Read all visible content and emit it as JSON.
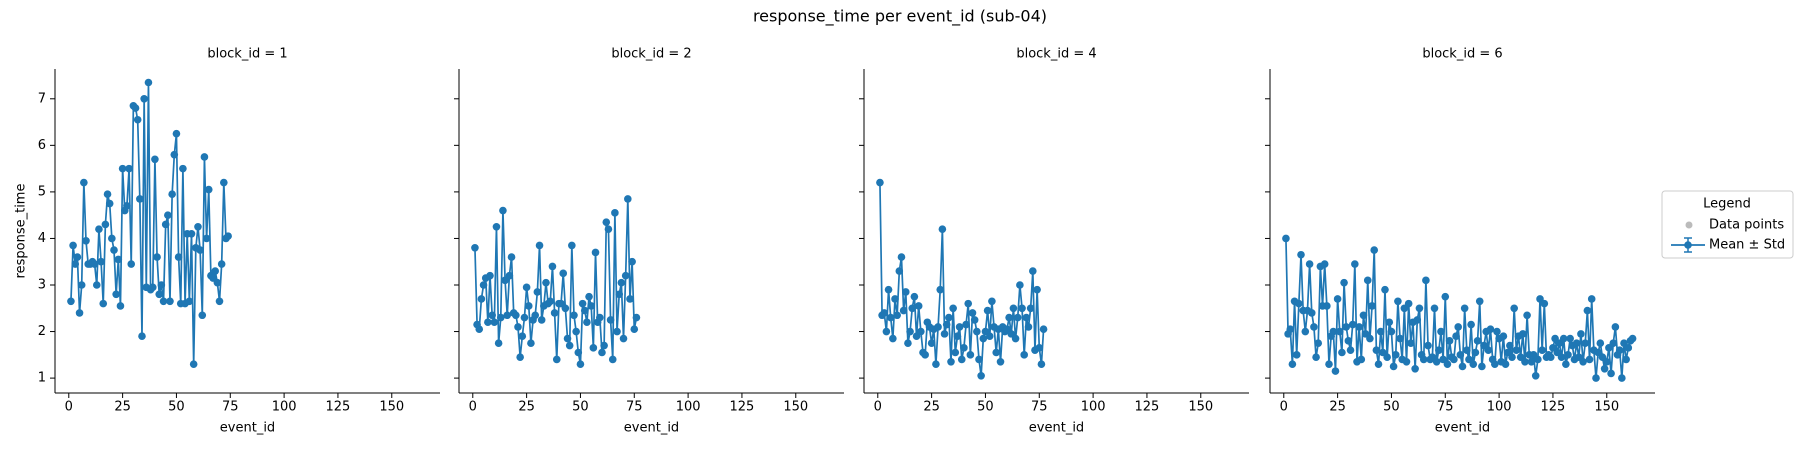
{
  "title": "response_time per event_id (sub-04)",
  "legend": {
    "title": "Legend",
    "position": "right",
    "entries": [
      {
        "name": "Data points",
        "color": "#bbbbbb"
      }
    ]
  },
  "chart_data": [
    {
      "type": "line",
      "title": "block_id = 1",
      "xlabel": "event_id",
      "ylabel": "response_time",
      "x": [
        1,
        2,
        3,
        4,
        5,
        6,
        7,
        8,
        9,
        10,
        11,
        12,
        13,
        14,
        15,
        16,
        17,
        18,
        19,
        20,
        21,
        22,
        23,
        24,
        25,
        26,
        27,
        28,
        29,
        30,
        31,
        32,
        33,
        34,
        35,
        36,
        37,
        38,
        39,
        40,
        41,
        42,
        43,
        44,
        45,
        46,
        47,
        48,
        49,
        50,
        51,
        52,
        53,
        54,
        55,
        56,
        57,
        58,
        59,
        60,
        61,
        62,
        63,
        64,
        65,
        66,
        67,
        68,
        69,
        70,
        71,
        72,
        73,
        74
      ],
      "series": [
        {
          "name": "Mean ± Std",
          "color": "#1f77b4",
          "values": [
            2.65,
            3.85,
            3.45,
            3.6,
            2.4,
            3.0,
            5.2,
            3.95,
            3.45,
            3.45,
            3.5,
            3.45,
            3.0,
            4.2,
            3.5,
            2.6,
            4.3,
            4.95,
            4.75,
            4.0,
            3.75,
            2.8,
            3.55,
            2.55,
            5.5,
            4.6,
            4.7,
            5.5,
            3.45,
            6.85,
            6.8,
            6.55,
            4.85,
            1.9,
            7.0,
            2.95,
            7.35,
            2.9,
            2.95,
            5.7,
            3.6,
            2.8,
            3.0,
            2.65,
            4.3,
            4.5,
            2.65,
            4.95,
            5.8,
            6.25,
            3.6,
            2.6,
            5.5,
            2.6,
            4.1,
            2.65,
            4.1,
            1.3,
            3.8,
            4.25,
            3.75,
            2.35,
            5.75,
            4.0,
            5.05,
            3.2,
            3.15,
            3.3,
            3.05,
            2.65,
            3.45,
            5.2,
            4.0,
            4.05
          ]
        }
      ],
      "xlim": [
        -6.4,
        172.4
      ],
      "ylim": [
        0.68,
        7.64
      ],
      "xticks": [
        0,
        25,
        50,
        75,
        100,
        125,
        150
      ],
      "yticks": [
        1,
        2,
        3,
        4,
        5,
        6,
        7
      ]
    },
    {
      "type": "line",
      "title": "block_id = 2",
      "xlabel": "event_id",
      "x": [
        1,
        2,
        3,
        4,
        5,
        6,
        7,
        8,
        9,
        10,
        11,
        12,
        13,
        14,
        15,
        16,
        17,
        18,
        19,
        20,
        21,
        22,
        23,
        24,
        25,
        26,
        27,
        28,
        29,
        30,
        31,
        32,
        33,
        34,
        35,
        36,
        37,
        38,
        39,
        40,
        41,
        42,
        43,
        44,
        45,
        46,
        47,
        48,
        49,
        50,
        51,
        52,
        53,
        54,
        55,
        56,
        57,
        58,
        59,
        60,
        61,
        62,
        63,
        64,
        65,
        66,
        67,
        68,
        69,
        70,
        71,
        72,
        73,
        74,
        75,
        76
      ],
      "series": [
        {
          "name": "Mean ± Std",
          "color": "#1f77b4",
          "values": [
            3.8,
            2.15,
            2.05,
            2.7,
            3.0,
            3.15,
            2.2,
            3.2,
            2.35,
            2.2,
            4.25,
            1.75,
            2.3,
            4.6,
            3.1,
            2.35,
            3.2,
            3.6,
            2.4,
            2.35,
            2.1,
            1.45,
            1.9,
            2.3,
            2.95,
            2.55,
            1.75,
            2.25,
            2.35,
            2.85,
            3.85,
            2.25,
            2.55,
            3.05,
            2.6,
            2.65,
            3.4,
            2.4,
            1.4,
            2.6,
            2.6,
            3.25,
            2.5,
            1.85,
            1.7,
            3.85,
            2.35,
            2.0,
            1.55,
            1.3,
            2.6,
            2.45,
            2.2,
            2.75,
            2.55,
            1.65,
            3.7,
            2.2,
            2.3,
            1.55,
            1.7,
            4.35,
            4.2,
            2.25,
            1.4,
            4.55,
            2.0,
            2.8,
            3.05,
            1.85,
            3.2,
            4.85,
            2.7,
            3.5,
            2.05,
            2.3
          ]
        }
      ],
      "xlim": [
        -6.4,
        172.4
      ],
      "ylim": [
        0.68,
        7.64
      ],
      "xticks": [
        0,
        25,
        50,
        75,
        100,
        125,
        150
      ],
      "yticks": [
        1,
        2,
        3,
        4,
        5,
        6,
        7
      ]
    },
    {
      "type": "line",
      "title": "block_id = 4",
      "xlabel": "event_id",
      "x": [
        1,
        2,
        3,
        4,
        5,
        6,
        7,
        8,
        9,
        10,
        11,
        12,
        13,
        14,
        15,
        16,
        17,
        18,
        19,
        20,
        21,
        22,
        23,
        24,
        25,
        26,
        27,
        28,
        29,
        30,
        31,
        32,
        33,
        34,
        35,
        36,
        37,
        38,
        39,
        40,
        41,
        42,
        43,
        44,
        45,
        46,
        47,
        48,
        49,
        50,
        51,
        52,
        53,
        54,
        55,
        56,
        57,
        58,
        59,
        60,
        61,
        62,
        63,
        64,
        65,
        66,
        67,
        68,
        69,
        70,
        71,
        72,
        73,
        74,
        75,
        76,
        77
      ],
      "series": [
        {
          "name": "Mean ± Std",
          "color": "#1f77b4",
          "values": [
            5.2,
            2.35,
            2.4,
            2.0,
            2.9,
            2.3,
            1.85,
            2.7,
            2.35,
            3.3,
            3.6,
            2.45,
            2.85,
            1.75,
            2.0,
            2.5,
            2.75,
            1.9,
            2.55,
            2.0,
            1.55,
            1.5,
            2.2,
            2.1,
            1.75,
            2.05,
            1.3,
            2.1,
            2.9,
            4.2,
            1.95,
            2.15,
            2.3,
            1.35,
            2.5,
            1.55,
            1.9,
            2.1,
            1.4,
            1.65,
            2.15,
            2.6,
            1.5,
            2.4,
            2.25,
            2.0,
            1.4,
            1.05,
            1.85,
            2.0,
            2.45,
            1.9,
            2.65,
            2.1,
            1.55,
            2.05,
            1.35,
            2.1,
            2.0,
            2.05,
            2.3,
            1.95,
            2.5,
            1.85,
            2.3,
            3.0,
            2.5,
            1.5,
            2.3,
            2.1,
            2.5,
            3.3,
            1.6,
            2.9,
            1.65,
            1.3,
            2.05
          ]
        }
      ],
      "xlim": [
        -6.4,
        172.4
      ],
      "ylim": [
        0.68,
        7.64
      ],
      "xticks": [
        0,
        25,
        50,
        75,
        100,
        125,
        150
      ],
      "yticks": [
        1,
        2,
        3,
        4,
        5,
        6,
        7
      ]
    },
    {
      "type": "line",
      "title": "block_id = 6",
      "xlabel": "event_id",
      "x": [
        1,
        2,
        3,
        4,
        5,
        6,
        7,
        8,
        9,
        10,
        11,
        12,
        13,
        14,
        15,
        16,
        17,
        18,
        19,
        20,
        21,
        22,
        23,
        24,
        25,
        26,
        27,
        28,
        29,
        30,
        31,
        32,
        33,
        34,
        35,
        36,
        37,
        38,
        39,
        40,
        41,
        42,
        43,
        44,
        45,
        46,
        47,
        48,
        49,
        50,
        51,
        52,
        53,
        54,
        55,
        56,
        57,
        58,
        59,
        60,
        61,
        62,
        63,
        64,
        65,
        66,
        67,
        68,
        69,
        70,
        71,
        72,
        73,
        74,
        75,
        76,
        77,
        78,
        79,
        80,
        81,
        82,
        83,
        84,
        85,
        86,
        87,
        88,
        89,
        90,
        91,
        92,
        93,
        94,
        95,
        96,
        97,
        98,
        99,
        100,
        101,
        102,
        103,
        104,
        105,
        106,
        107,
        108,
        109,
        110,
        111,
        112,
        113,
        114,
        115,
        116,
        117,
        118,
        119,
        120,
        121,
        122,
        123,
        124,
        125,
        126,
        127,
        128,
        129,
        130,
        131,
        132,
        133,
        134,
        135,
        136,
        137,
        138,
        139,
        140,
        141,
        142,
        143,
        144,
        145,
        146,
        147,
        148,
        149,
        150,
        151,
        152,
        153,
        154,
        155,
        156,
        157,
        158,
        159,
        160,
        161,
        162
      ],
      "series": [
        {
          "name": "Mean ± Std",
          "color": "#1f77b4",
          "values": [
            4.0,
            1.95,
            2.05,
            1.3,
            2.65,
            1.5,
            2.6,
            3.65,
            2.45,
            2.0,
            2.45,
            3.45,
            2.4,
            2.1,
            1.45,
            1.75,
            3.4,
            2.55,
            3.45,
            2.55,
            1.3,
            1.9,
            2.0,
            1.15,
            2.7,
            2.0,
            1.55,
            3.05,
            2.1,
            1.8,
            1.6,
            2.15,
            3.45,
            1.35,
            2.1,
            1.4,
            2.35,
            1.95,
            3.1,
            1.85,
            2.55,
            3.75,
            1.6,
            1.3,
            2.0,
            1.55,
            2.9,
            1.45,
            2.2,
            2.0,
            1.25,
            1.5,
            2.65,
            1.85,
            1.4,
            2.5,
            1.35,
            2.6,
            1.75,
            2.2,
            1.2,
            2.25,
            2.5,
            1.5,
            1.4,
            3.1,
            1.7,
            1.4,
            1.45,
            2.5,
            1.35,
            1.6,
            2.0,
            1.4,
            2.75,
            1.3,
            1.8,
            1.45,
            1.4,
            1.9,
            2.1,
            1.5,
            1.25,
            2.5,
            1.6,
            1.4,
            2.15,
            1.3,
            1.55,
            1.8,
            2.65,
            1.25,
            1.7,
            2.0,
            1.6,
            2.05,
            1.4,
            1.3,
            2.0,
            1.85,
            1.35,
            1.9,
            1.3,
            1.55,
            1.7,
            1.45,
            2.5,
            1.6,
            1.9,
            1.45,
            1.95,
            1.35,
            2.35,
            1.5,
            1.35,
            1.5,
            1.05,
            1.4,
            2.7,
            1.6,
            2.6,
            1.45,
            1.5,
            1.45,
            1.65,
            1.85,
            1.55,
            1.75,
            1.45,
            1.85,
            1.3,
            1.5,
            1.85,
            1.7,
            1.4,
            1.75,
            1.45,
            1.95,
            1.35,
            1.75,
            2.45,
            1.4,
            2.7,
            1.6,
            1.0,
            1.55,
            1.75,
            1.45,
            1.2,
            1.35,
            1.65,
            1.1,
            1.75,
            2.1,
            1.5,
            1.6,
            1.0,
            1.75,
            1.4,
            1.65,
            1.8,
            1.85
          ]
        }
      ],
      "xlim": [
        -6.4,
        172.4
      ],
      "ylim": [
        0.68,
        7.64
      ],
      "xticks": [
        0,
        25,
        50,
        75,
        100,
        125,
        150
      ],
      "yticks": [
        1,
        2,
        3,
        4,
        5,
        6,
        7
      ]
    }
  ]
}
